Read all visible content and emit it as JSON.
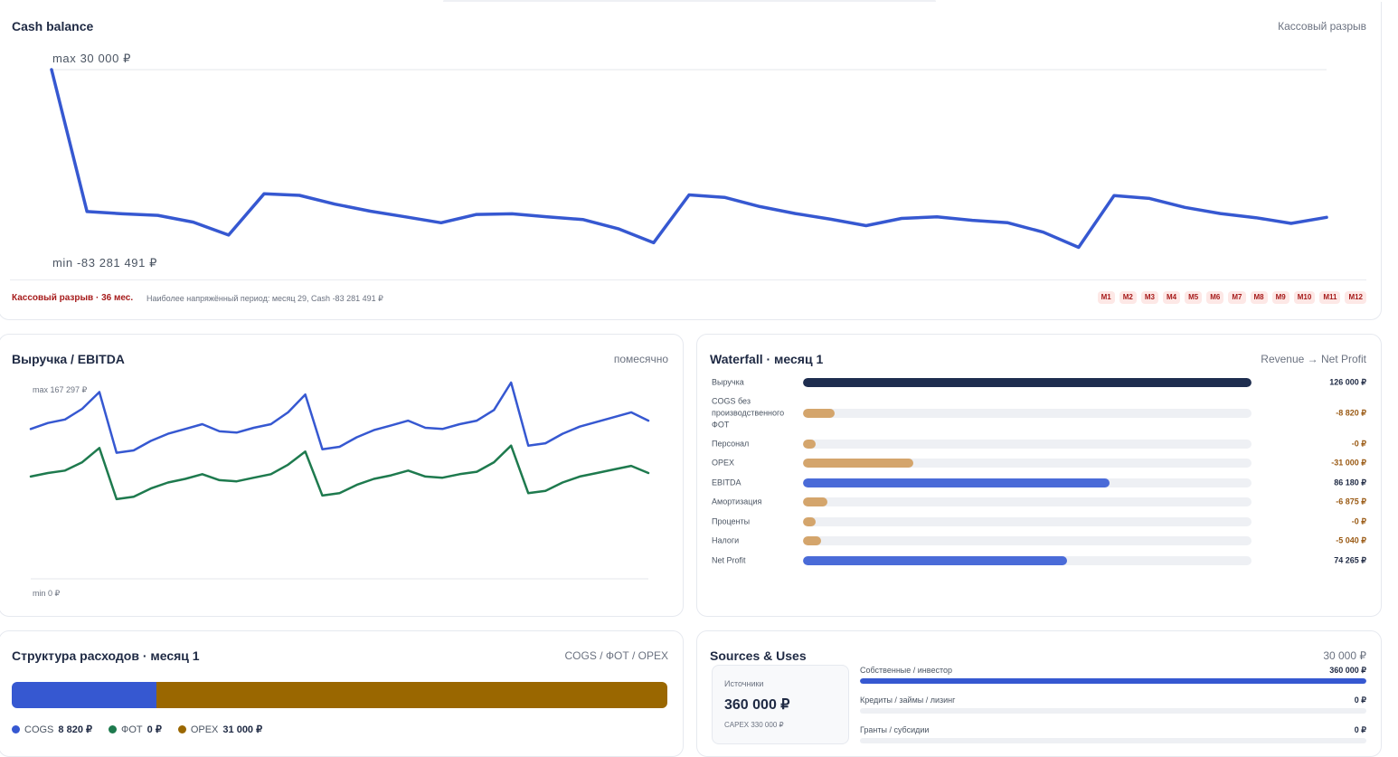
{
  "cash": {
    "title": "Cash balance",
    "hint": "Кассовый разрыв",
    "max_label": "max 30 000 ₽",
    "min_label": "min -83 281 491 ₽",
    "gap_label": "Кассовый разрыв · 36 мес.",
    "gap_note": "Наиболее напряжённый период: месяц 29, Cash -83 281 491 ₽",
    "months": [
      "M1",
      "M2",
      "M3",
      "M4",
      "M5",
      "M6",
      "M7",
      "M8",
      "M9",
      "M10",
      "M11",
      "M12"
    ]
  },
  "revenue": {
    "title": "Выручка / EBITDA",
    "hint": "помесячно",
    "max_label": "max 167 297 ₽",
    "min_label": "min 0 ₽"
  },
  "waterfall": {
    "title": "Waterfall · месяц 1",
    "hint": "Revenue → Net Profit",
    "rows": [
      {
        "label": "Выручка",
        "value": "126 000 ₽",
        "fraction": 1.0,
        "kind": "total"
      },
      {
        "label": "COGS без производственного ФОТ",
        "value": "-8 820 ₽",
        "fraction": 0.07,
        "kind": "negative"
      },
      {
        "label": "Персонал",
        "value": "-0 ₽",
        "fraction": 0.0,
        "kind": "negative"
      },
      {
        "label": "OPEX",
        "value": "-31 000 ₽",
        "fraction": 0.246,
        "kind": "negative"
      },
      {
        "label": "EBITDA",
        "value": "86 180 ₽",
        "fraction": 0.684,
        "kind": "subtotal"
      },
      {
        "label": "Амортизация",
        "value": "-6 875 ₽",
        "fraction": 0.055,
        "kind": "negative"
      },
      {
        "label": "Проценты",
        "value": "-0 ₽",
        "fraction": 0.0,
        "kind": "negative"
      },
      {
        "label": "Налоги",
        "value": "-5 040 ₽",
        "fraction": 0.04,
        "kind": "negative"
      },
      {
        "label": "Net Profit",
        "value": "74 265 ₽",
        "fraction": 0.589,
        "kind": "subtotal"
      }
    ]
  },
  "costs": {
    "title": "Структура расходов · месяц 1",
    "hint": "COGS / ФОТ / OPEX",
    "items": [
      {
        "name": "COGS",
        "value": "8 820 ₽",
        "share": 0.221,
        "color": "#3658d1"
      },
      {
        "name": "ФОТ",
        "value": "0 ₽",
        "share": 0.0,
        "color": "#1e7a4e"
      },
      {
        "name": "OPEX",
        "value": "31 000 ₽",
        "share": 0.779,
        "color": "#9a6700"
      }
    ]
  },
  "sources": {
    "title": "Sources & Uses",
    "hint": "30 000 ₽",
    "box_label": "Источники",
    "box_value": "360 000 ₽",
    "box_capex": "CAPEX 330 000 ₽",
    "rows": [
      {
        "name": "Собственные / инвестор",
        "value": "360 000 ₽",
        "fraction": 1.0
      },
      {
        "name": "Кредиты / займы / лизинг",
        "value": "0 ₽",
        "fraction": 0.0
      },
      {
        "name": "Гранты / субсидии",
        "value": "0 ₽",
        "fraction": 0.0
      }
    ]
  },
  "colors": {
    "accent_blue": "#3658d1",
    "green": "#1e7a4e",
    "dark_navy": "#1e2d4f",
    "negative_tan": "#d4a56c",
    "negative_text": "#9a5a14",
    "alert_red": "#a61b1b"
  },
  "chart_data": [
    {
      "type": "line",
      "title": "Cash balance",
      "x": [
        1,
        2,
        3,
        4,
        5,
        6,
        7,
        8,
        9,
        10,
        11,
        12,
        13,
        14,
        15,
        16,
        17,
        18,
        19,
        20,
        21,
        22,
        23,
        24,
        25,
        26,
        27,
        28,
        29,
        30,
        31,
        32,
        33,
        34,
        35,
        36,
        37
      ],
      "series": [
        {
          "values": [
            30000,
            -64700000,
            -65700000,
            -66400000,
            -69500000,
            -75400000,
            -56600000,
            -57300000,
            -61300000,
            -64500000,
            -67100000,
            -69800000,
            -66000000,
            -65700000,
            -67100000,
            -68300000,
            -72500000,
            -78900000,
            -57100000,
            -58200000,
            -62400000,
            -65600000,
            -68200000,
            -71100000,
            -67800000,
            -67100000,
            -68700000,
            -69800000,
            -74100000,
            -81000000,
            -57400000,
            -58700000,
            -62800000,
            -65600000,
            -67500000,
            -70100000,
            -67300000
          ]
        }
      ],
      "ylim": [
        -83281491,
        30000
      ]
    },
    {
      "type": "line",
      "title": "Выручка / EBITDA",
      "x": [
        1,
        2,
        3,
        4,
        5,
        6,
        7,
        8,
        9,
        10,
        11,
        12,
        13,
        14,
        15,
        16,
        17,
        18,
        19,
        20,
        21,
        22,
        23,
        24,
        25,
        26,
        27,
        28,
        29,
        30,
        31,
        32,
        33,
        34,
        35,
        36,
        37
      ],
      "series": [
        {
          "values": [
            126000,
            131000,
            134000,
            143000,
            157000,
            106000,
            108000,
            116000,
            122000,
            126000,
            130000,
            124000,
            123000,
            127000,
            130000,
            140000,
            155000,
            109000,
            111000,
            119000,
            125000,
            129000,
            133000,
            127000,
            126000,
            130000,
            133000,
            142000,
            165000,
            112000,
            114000,
            122000,
            128000,
            132000,
            136000,
            140000,
            133000
          ]
        },
        {
          "values": [
            86000,
            89000,
            91000,
            98000,
            110000,
            67000,
            69000,
            76000,
            81000,
            84000,
            88000,
            83000,
            82000,
            85000,
            88000,
            96000,
            107000,
            70000,
            72000,
            79000,
            84000,
            87000,
            91000,
            86000,
            85000,
            88000,
            90000,
            98000,
            112000,
            72000,
            74000,
            81000,
            86000,
            89000,
            92000,
            95000,
            89000
          ]
        }
      ],
      "ylim": [
        0,
        167297
      ]
    }
  ]
}
